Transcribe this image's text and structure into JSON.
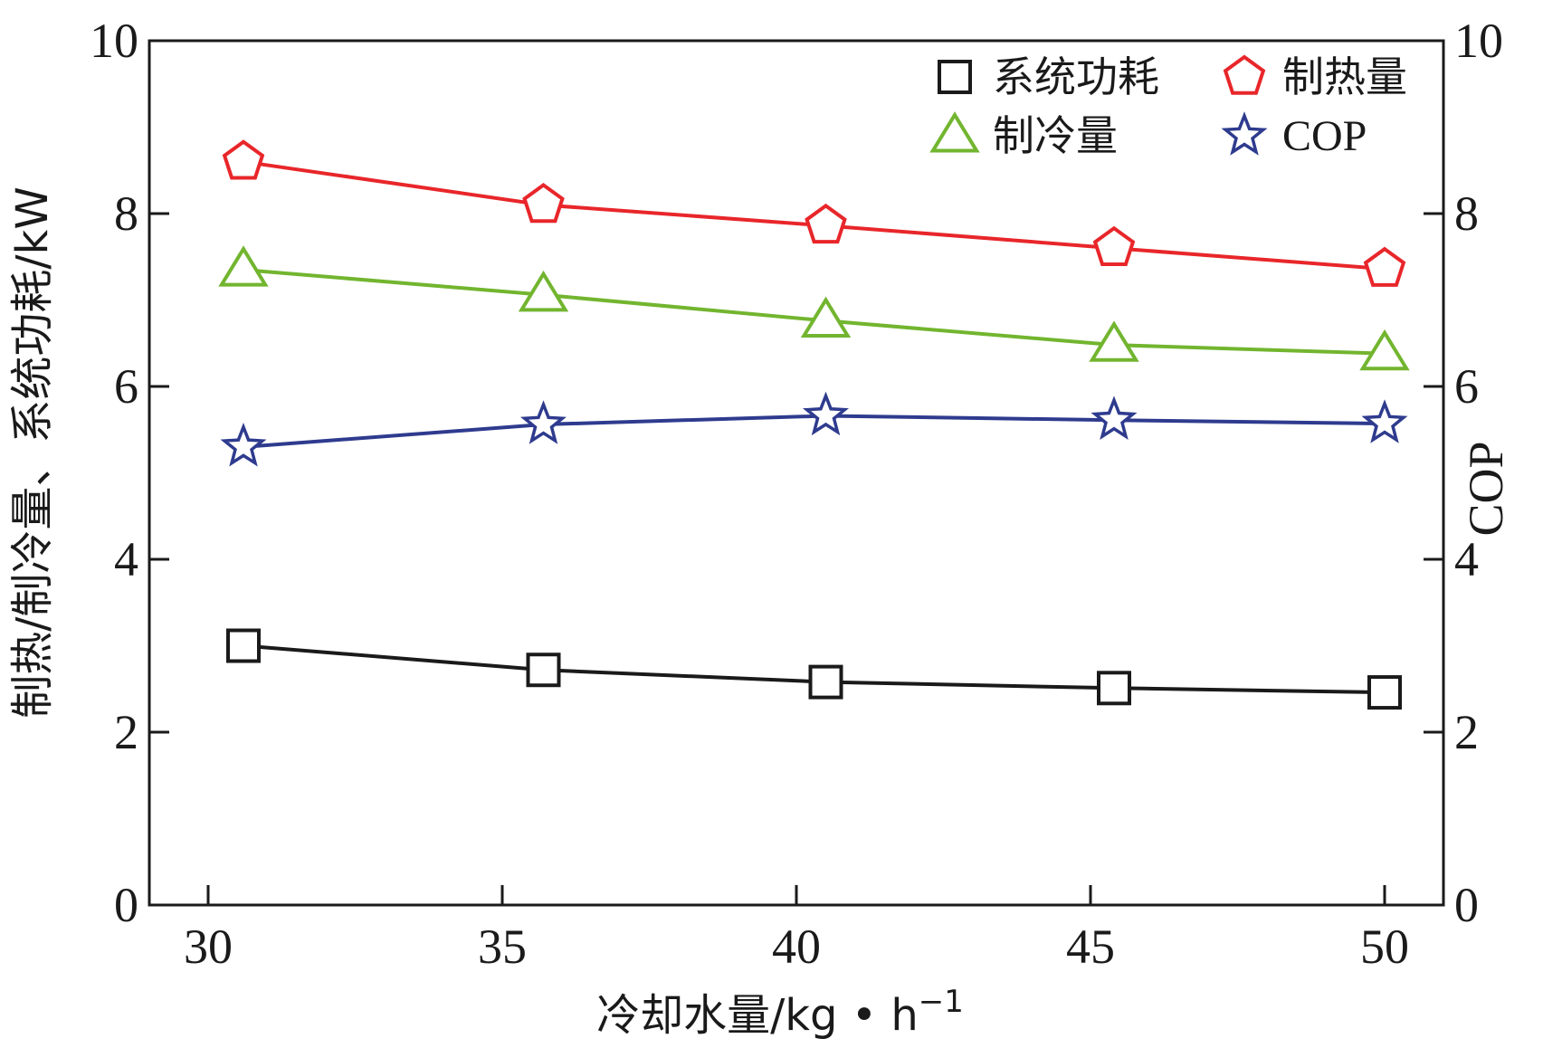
{
  "chart_data": {
    "type": "line",
    "x": [
      30.6,
      35.7,
      40.5,
      45.4,
      50.0
    ],
    "xlim": [
      29,
      51
    ],
    "xticks": [
      "30",
      "35",
      "40",
      "45",
      "50"
    ],
    "xtick_values": [
      30,
      35,
      40,
      45,
      50
    ],
    "xlabel": "冷却水量/kg • h",
    "xlabel_sup": "−1",
    "left_axis": {
      "label": "制热/制冷量、系统功耗/kW",
      "ylim": [
        0,
        10
      ],
      "ticks": [
        "0",
        "2",
        "4",
        "6",
        "8",
        "10"
      ],
      "tick_values": [
        0,
        2,
        4,
        6,
        8,
        10
      ]
    },
    "right_axis": {
      "label": "COP",
      "ylim": [
        0,
        10
      ],
      "ticks": [
        "0",
        "2",
        "4",
        "6",
        "8",
        "10"
      ],
      "tick_values": [
        0,
        2,
        4,
        6,
        8,
        10
      ]
    },
    "legend_position": "top-right",
    "series": [
      {
        "name": "系统功耗",
        "marker": "square",
        "color": "#1a1a1a",
        "axis": "left",
        "values": [
          3.0,
          2.72,
          2.58,
          2.51,
          2.46
        ]
      },
      {
        "name": "制热量",
        "marker": "pentagon",
        "color": "#e8262a",
        "axis": "left",
        "values": [
          8.6,
          8.1,
          7.86,
          7.6,
          7.36
        ]
      },
      {
        "name": "制冷量",
        "marker": "triangle",
        "color": "#72b52f",
        "axis": "left",
        "values": [
          7.35,
          7.06,
          6.76,
          6.48,
          6.38
        ]
      },
      {
        "name": "COP",
        "marker": "star",
        "color": "#2e3b8e",
        "axis": "right",
        "values": [
          5.3,
          5.56,
          5.66,
          5.61,
          5.57
        ]
      }
    ]
  }
}
